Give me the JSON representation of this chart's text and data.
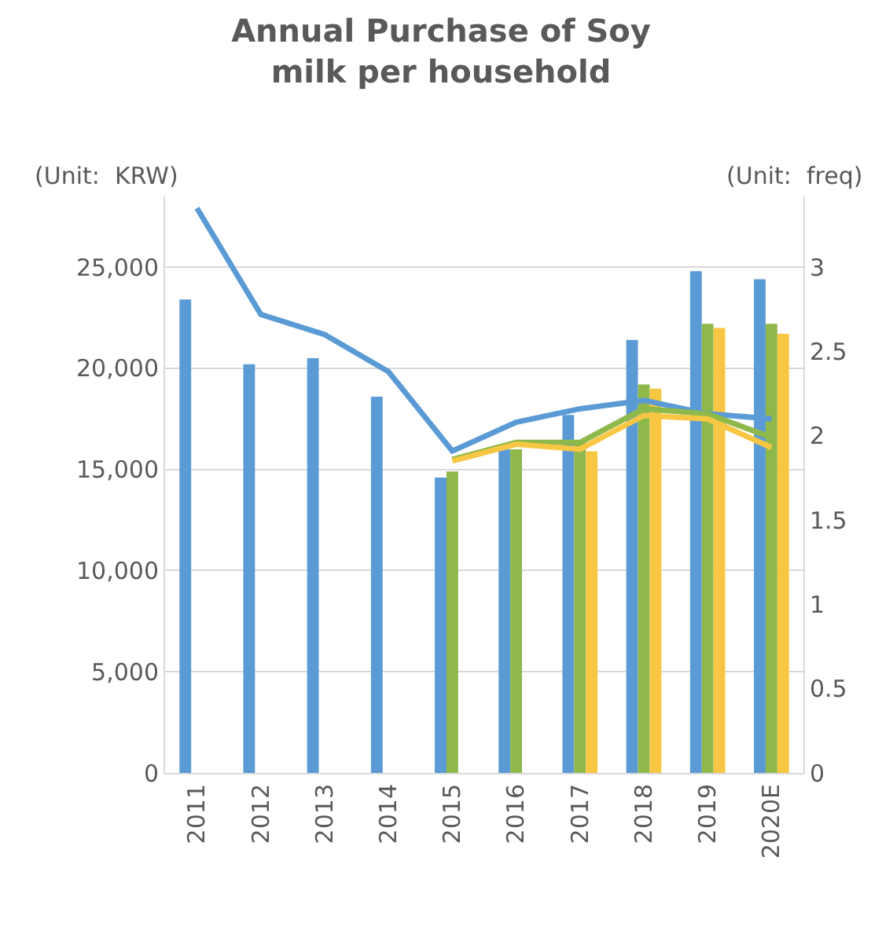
{
  "chart_data": {
    "type": "bar",
    "title": "Annual Purchase of Soy milk per household",
    "ylabel": "(Unit:  KRW)",
    "y2label": "(Unit:  freq)",
    "categories": [
      "2011",
      "2012",
      "2013",
      "2014",
      "2015",
      "2016",
      "2017",
      "2018",
      "2019",
      "2020E"
    ],
    "series": [
      {
        "color": "#5b9bd5",
        "values": [
          23400,
          20200,
          20500,
          18600,
          14600,
          16000,
          17700,
          21400,
          24800,
          24400
        ]
      },
      {
        "color": "#8fb84a",
        "values": [
          null,
          null,
          null,
          null,
          14900,
          16000,
          16400,
          19200,
          22200,
          22200
        ]
      },
      {
        "color": "#f7c744",
        "values": [
          null,
          null,
          null,
          null,
          null,
          null,
          15900,
          19000,
          22000,
          21700
        ]
      },
      {
        "type": "line",
        "axis": "y2",
        "color": "#5b9bd5",
        "values": [
          3.35,
          2.72,
          2.6,
          2.38,
          1.91,
          2.08,
          2.16,
          2.21,
          2.13,
          2.1
        ]
      },
      {
        "type": "line",
        "axis": "y2",
        "color": "#8fb84a",
        "values": [
          null,
          null,
          null,
          null,
          1.86,
          1.96,
          1.96,
          2.16,
          2.13,
          1.99
        ]
      },
      {
        "type": "line",
        "axis": "y2",
        "color": "#f7c744",
        "values": [
          null,
          null,
          null,
          null,
          1.85,
          1.95,
          1.92,
          2.12,
          2.1,
          1.93
        ]
      }
    ],
    "ylim": [
      0,
      28500
    ],
    "yticks": [
      {
        "value": 0,
        "label": "0"
      },
      {
        "value": 5000,
        "label": "5,000"
      },
      {
        "value": 10000,
        "label": "10,000"
      },
      {
        "value": 15000,
        "label": "15,000"
      },
      {
        "value": 20000,
        "label": "20,000"
      },
      {
        "value": 25000,
        "label": "25,000"
      }
    ],
    "y2lim": [
      0,
      3.42
    ],
    "y2ticks": [
      0,
      0.5,
      1,
      1.5,
      2,
      2.5,
      3
    ],
    "grid": "y",
    "line_style": "solid",
    "marker": "none"
  }
}
